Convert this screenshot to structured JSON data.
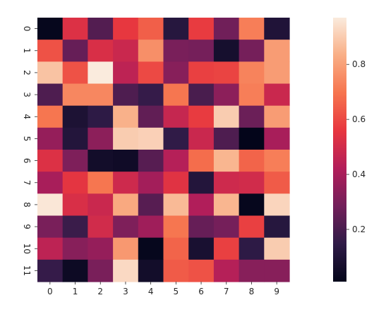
{
  "chart_data": {
    "type": "heatmap",
    "title": "",
    "xlabel": "",
    "ylabel": "",
    "x_categories": [
      "0",
      "1",
      "2",
      "3",
      "4",
      "5",
      "6",
      "7",
      "8",
      "9"
    ],
    "y_categories": [
      "0",
      "1",
      "2",
      "3",
      "4",
      "5",
      "6",
      "7",
      "8",
      "9",
      "10",
      "11"
    ],
    "colorbar": {
      "ticks": [
        0.2,
        0.4,
        0.6,
        0.8
      ],
      "tick_labels": [
        "0.2",
        "0.4",
        "0.6",
        "0.8"
      ],
      "range": [
        0.01,
        0.97
      ]
    },
    "colormap_stops": [
      "#03051a",
      "#2f1b47",
      "#721f5a",
      "#b21e5a",
      "#e7363f",
      "#f6744e",
      "#f9ae85",
      "#faebdd"
    ],
    "values": [
      [
        0.02,
        0.53,
        0.22,
        0.56,
        0.65,
        0.12,
        0.57,
        0.28,
        0.72,
        0.1
      ],
      [
        0.62,
        0.26,
        0.52,
        0.48,
        0.76,
        0.3,
        0.29,
        0.07,
        0.29,
        0.79
      ],
      [
        0.88,
        0.62,
        0.97,
        0.45,
        0.6,
        0.33,
        0.58,
        0.59,
        0.73,
        0.79
      ],
      [
        0.21,
        0.74,
        0.74,
        0.21,
        0.16,
        0.7,
        0.2,
        0.34,
        0.72,
        0.48
      ],
      [
        0.7,
        0.09,
        0.14,
        0.84,
        0.25,
        0.47,
        0.57,
        0.9,
        0.27,
        0.79
      ],
      [
        0.36,
        0.11,
        0.34,
        0.9,
        0.91,
        0.15,
        0.48,
        0.21,
        0.01,
        0.4
      ],
      [
        0.53,
        0.31,
        0.06,
        0.05,
        0.23,
        0.43,
        0.68,
        0.85,
        0.66,
        0.72
      ],
      [
        0.4,
        0.55,
        0.7,
        0.49,
        0.39,
        0.54,
        0.11,
        0.49,
        0.5,
        0.64
      ],
      [
        0.96,
        0.52,
        0.48,
        0.82,
        0.23,
        0.86,
        0.42,
        0.85,
        0.02,
        0.92
      ],
      [
        0.3,
        0.17,
        0.5,
        0.31,
        0.38,
        0.7,
        0.26,
        0.29,
        0.58,
        0.12
      ],
      [
        0.45,
        0.33,
        0.36,
        0.78,
        0.02,
        0.66,
        0.08,
        0.58,
        0.14,
        0.9
      ],
      [
        0.16,
        0.04,
        0.3,
        0.93,
        0.06,
        0.64,
        0.62,
        0.43,
        0.33,
        0.33
      ]
    ]
  }
}
